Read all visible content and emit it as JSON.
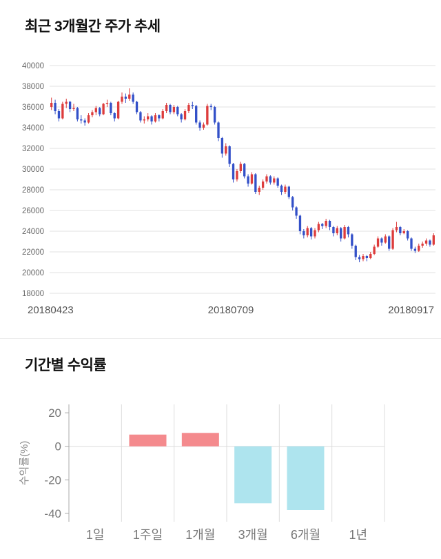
{
  "chart_data": [
    {
      "type": "candlestick",
      "title": "최근 3개월간 주가 추세",
      "x_tick_labels": [
        "20180423",
        "20180709",
        "20180917"
      ],
      "y_ticks": [
        40000,
        38000,
        36000,
        34000,
        32000,
        30000,
        28000,
        26000,
        24000,
        22000,
        20000,
        18000
      ],
      "ylim": [
        18000,
        40000
      ],
      "grid": "horizontal",
      "colors": {
        "up": "#dd3c3c",
        "down": "#3350c8",
        "grid": "#e0e0e0",
        "axis_text": "#666666",
        "date_text": "#555555"
      },
      "candles": [
        [
          36000,
          36900,
          35700,
          36400
        ],
        [
          36400,
          36700,
          35300,
          35600
        ],
        [
          35600,
          35800,
          34600,
          34900
        ],
        [
          34900,
          36500,
          34800,
          36300
        ],
        [
          36300,
          36800,
          35900,
          36500
        ],
        [
          36500,
          36600,
          35500,
          35800
        ],
        [
          35800,
          36300,
          35600,
          35900
        ],
        [
          35900,
          36000,
          34600,
          34800
        ],
        [
          34800,
          35200,
          34400,
          34700
        ],
        [
          34700,
          34900,
          34200,
          34500
        ],
        [
          34500,
          35400,
          34400,
          35200
        ],
        [
          35200,
          35700,
          35000,
          35500
        ],
        [
          35500,
          36100,
          35200,
          35900
        ],
        [
          35900,
          36000,
          35100,
          35300
        ],
        [
          35300,
          36400,
          35200,
          36300
        ],
        [
          36300,
          36700,
          36000,
          36400
        ],
        [
          36400,
          36500,
          35200,
          35400
        ],
        [
          35400,
          35500,
          34600,
          34900
        ],
        [
          34900,
          36600,
          34800,
          36500
        ],
        [
          36500,
          37400,
          36300,
          37000
        ],
        [
          37000,
          37300,
          36400,
          36800
        ],
        [
          36800,
          37800,
          36600,
          37200
        ],
        [
          37200,
          37400,
          36300,
          36500
        ],
        [
          36500,
          36600,
          35300,
          35500
        ],
        [
          35500,
          35600,
          34500,
          34700
        ],
        [
          34700,
          35100,
          34400,
          34800
        ],
        [
          34800,
          35400,
          34600,
          35100
        ],
        [
          35100,
          35200,
          34300,
          34600
        ],
        [
          34600,
          35400,
          34500,
          35200
        ],
        [
          35200,
          35300,
          34600,
          34900
        ],
        [
          34900,
          35800,
          34800,
          35600
        ],
        [
          35600,
          36400,
          35400,
          36200
        ],
        [
          36200,
          36300,
          35300,
          35500
        ],
        [
          35500,
          36200,
          35300,
          36000
        ],
        [
          36000,
          36100,
          35100,
          35300
        ],
        [
          35300,
          35400,
          34500,
          34800
        ],
        [
          34800,
          35800,
          34700,
          35600
        ],
        [
          35600,
          36400,
          35400,
          36200
        ],
        [
          36200,
          36500,
          35800,
          36100
        ],
        [
          36100,
          36200,
          34300,
          34500
        ],
        [
          34500,
          34700,
          33700,
          34000
        ],
        [
          34000,
          34500,
          33800,
          34300
        ],
        [
          34300,
          36300,
          34200,
          36100
        ],
        [
          36100,
          36300,
          35700,
          36000
        ],
        [
          36000,
          36100,
          34300,
          34500
        ],
        [
          34500,
          34600,
          32700,
          33000
        ],
        [
          33000,
          33100,
          31100,
          31500
        ],
        [
          31500,
          32500,
          31300,
          32200
        ],
        [
          32200,
          32300,
          30200,
          30500
        ],
        [
          30500,
          30600,
          28700,
          29000
        ],
        [
          29000,
          30000,
          28800,
          29800
        ],
        [
          29800,
          30700,
          29600,
          30500
        ],
        [
          30500,
          30600,
          29100,
          29300
        ],
        [
          29300,
          29500,
          28300,
          28600
        ],
        [
          28600,
          29700,
          28500,
          29500
        ],
        [
          29500,
          29600,
          27600,
          27800
        ],
        [
          27800,
          28400,
          27500,
          28200
        ],
        [
          28200,
          29000,
          28000,
          28800
        ],
        [
          28800,
          29500,
          28600,
          29300
        ],
        [
          29300,
          29400,
          28500,
          28700
        ],
        [
          28700,
          29300,
          28500,
          29100
        ],
        [
          29100,
          29200,
          28200,
          28400
        ],
        [
          28400,
          28500,
          27500,
          27800
        ],
        [
          27800,
          28500,
          27600,
          28300
        ],
        [
          28300,
          28400,
          27100,
          27300
        ],
        [
          27300,
          27400,
          26000,
          26300
        ],
        [
          26300,
          26400,
          25200,
          25500
        ],
        [
          25500,
          25600,
          23700,
          24000
        ],
        [
          24000,
          24200,
          23300,
          23600
        ],
        [
          23600,
          24500,
          23400,
          24300
        ],
        [
          24300,
          24400,
          23200,
          23500
        ],
        [
          23500,
          24300,
          23300,
          24100
        ],
        [
          24100,
          24900,
          23900,
          24700
        ],
        [
          24700,
          24800,
          24200,
          24500
        ],
        [
          24500,
          25200,
          24300,
          25000
        ],
        [
          25000,
          25100,
          24100,
          24400
        ],
        [
          24400,
          24500,
          23500,
          23800
        ],
        [
          23800,
          24500,
          23600,
          24300
        ],
        [
          24300,
          24400,
          23000,
          23300
        ],
        [
          23300,
          24600,
          23200,
          24400
        ],
        [
          24400,
          24500,
          23400,
          23700
        ],
        [
          23700,
          23800,
          22300,
          22600
        ],
        [
          22600,
          22700,
          21200,
          21500
        ],
        [
          21500,
          21700,
          21000,
          21300
        ],
        [
          21300,
          21800,
          21100,
          21600
        ],
        [
          21600,
          21700,
          21100,
          21400
        ],
        [
          21400,
          22000,
          21300,
          21800
        ],
        [
          21800,
          22700,
          21700,
          22500
        ],
        [
          22500,
          23500,
          22400,
          23300
        ],
        [
          23300,
          23400,
          22600,
          22900
        ],
        [
          22900,
          23700,
          22800,
          23500
        ],
        [
          23500,
          23600,
          22100,
          22300
        ],
        [
          22300,
          24300,
          22200,
          24100
        ],
        [
          24100,
          24900,
          23900,
          24400
        ],
        [
          24400,
          24500,
          23600,
          23800
        ],
        [
          23800,
          24200,
          23700,
          24000
        ],
        [
          24000,
          24100,
          23100,
          23300
        ],
        [
          23300,
          23400,
          22100,
          22300
        ],
        [
          22300,
          22500,
          21900,
          22100
        ],
        [
          22100,
          22800,
          22000,
          22600
        ],
        [
          22600,
          23000,
          22400,
          22800
        ],
        [
          22800,
          23300,
          22600,
          23100
        ],
        [
          23100,
          23200,
          22500,
          22700
        ],
        [
          22700,
          23800,
          22600,
          23600
        ]
      ]
    },
    {
      "type": "bar",
      "title": "기간별 수익률",
      "ylabel": "수익률(%)",
      "categories": [
        "1일",
        "1주일",
        "1개월",
        "3개월",
        "6개월",
        "1년"
      ],
      "values": [
        0,
        7,
        8,
        -34,
        -38,
        0
      ],
      "y_ticks": [
        20,
        0,
        -20,
        -40
      ],
      "ylim": [
        -45,
        25
      ],
      "grid": "vertical",
      "legend": "none",
      "colors": {
        "positive": "#f48a8d",
        "negative": "#aee4ee",
        "grid": "#dcdcdc",
        "axis": "#aaaaaa",
        "axis_text": "#777777",
        "category_text": "#777777",
        "ylabel_text": "#888888"
      }
    }
  ]
}
